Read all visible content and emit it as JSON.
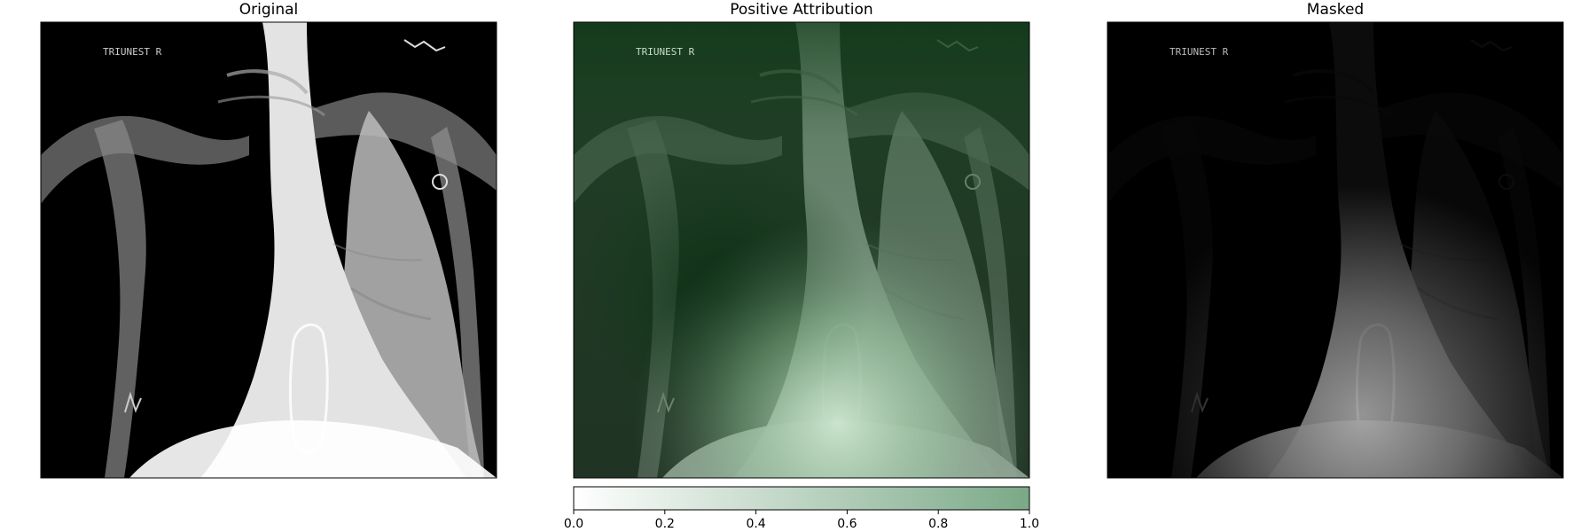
{
  "panels": [
    {
      "id": "original",
      "title": "Original"
    },
    {
      "id": "attribution",
      "title": "Positive Attribution"
    },
    {
      "id": "masked",
      "title": "Masked"
    }
  ],
  "image_text": {
    "top_left_marker": "TRIUNEST R"
  },
  "colorbar": {
    "min": 0.0,
    "max": 1.0,
    "ticks": [
      "0.0",
      "0.2",
      "0.4",
      "0.6",
      "0.8",
      "1.0"
    ],
    "color_low": "#ffffff",
    "color_high": "#7aa987"
  },
  "colors": {
    "xray_background": "#000000",
    "attribution_dark": "#0f3a17",
    "attribution_mid": "#6b8a73",
    "attribution_light": "#cfe8d2"
  }
}
